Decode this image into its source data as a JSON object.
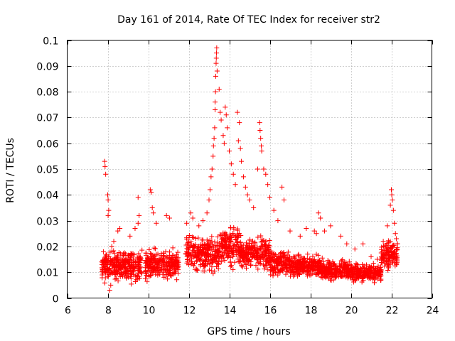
{
  "chart_data": {
    "type": "scatter",
    "title": "Day 161 of 2014, Rate Of TEC Index for receiver str2",
    "xlabel": "GPS time / hours",
    "ylabel": "ROTI / TECUs",
    "xlim": [
      6,
      24
    ],
    "ylim": [
      0,
      0.1
    ],
    "xticks": [
      "6",
      "8",
      "10",
      "12",
      "14",
      "16",
      "18",
      "20",
      "22",
      "24"
    ],
    "yticks": [
      "0",
      "0.01",
      "0.02",
      "0.03",
      "0.04",
      "0.05",
      "0.06",
      "0.07",
      "0.08",
      "0.09",
      "0.1"
    ],
    "grid": true,
    "marker": "+",
    "marker_color": "#ff0000",
    "series": [
      {
        "name": "ROTI",
        "points": [
          [
            7.85,
            0.053
          ],
          [
            7.87,
            0.051
          ],
          [
            7.9,
            0.048
          ],
          [
            8.0,
            0.04
          ],
          [
            8.02,
            0.038
          ],
          [
            8.05,
            0.034
          ],
          [
            8.02,
            0.032
          ],
          [
            8.1,
            0.003
          ],
          [
            8.15,
            0.005
          ],
          [
            8.2,
            0.02
          ],
          [
            8.3,
            0.022
          ],
          [
            8.5,
            0.026
          ],
          [
            8.6,
            0.027
          ],
          [
            9.1,
            0.024
          ],
          [
            9.35,
            0.027
          ],
          [
            9.5,
            0.029
          ],
          [
            9.5,
            0.039
          ],
          [
            9.55,
            0.032
          ],
          [
            10.1,
            0.042
          ],
          [
            10.15,
            0.041
          ],
          [
            10.2,
            0.035
          ],
          [
            10.25,
            0.033
          ],
          [
            10.4,
            0.029
          ],
          [
            10.9,
            0.032
          ],
          [
            11.05,
            0.031
          ],
          [
            11.9,
            0.029
          ],
          [
            12.1,
            0.033
          ],
          [
            12.2,
            0.031
          ],
          [
            12.5,
            0.028
          ],
          [
            12.7,
            0.03
          ],
          [
            12.9,
            0.033
          ],
          [
            13.0,
            0.038
          ],
          [
            13.05,
            0.042
          ],
          [
            13.1,
            0.047
          ],
          [
            13.15,
            0.05
          ],
          [
            13.2,
            0.055
          ],
          [
            13.22,
            0.059
          ],
          [
            13.25,
            0.062
          ],
          [
            13.28,
            0.066
          ],
          [
            13.3,
            0.073
          ],
          [
            13.3,
            0.076
          ],
          [
            13.32,
            0.08
          ],
          [
            13.33,
            0.086
          ],
          [
            13.35,
            0.091
          ],
          [
            13.36,
            0.093
          ],
          [
            13.37,
            0.095
          ],
          [
            13.38,
            0.097
          ],
          [
            13.4,
            0.088
          ],
          [
            13.5,
            0.081
          ],
          [
            13.55,
            0.072
          ],
          [
            13.6,
            0.069
          ],
          [
            13.7,
            0.063
          ],
          [
            13.75,
            0.06
          ],
          [
            13.8,
            0.074
          ],
          [
            13.85,
            0.071
          ],
          [
            13.9,
            0.066
          ],
          [
            14.0,
            0.057
          ],
          [
            14.1,
            0.052
          ],
          [
            14.2,
            0.048
          ],
          [
            14.3,
            0.044
          ],
          [
            14.4,
            0.072
          ],
          [
            14.45,
            0.061
          ],
          [
            14.5,
            0.068
          ],
          [
            14.55,
            0.058
          ],
          [
            14.6,
            0.053
          ],
          [
            14.7,
            0.047
          ],
          [
            14.8,
            0.043
          ],
          [
            14.9,
            0.04
          ],
          [
            15.0,
            0.038
          ],
          [
            15.2,
            0.035
          ],
          [
            15.4,
            0.05
          ],
          [
            15.5,
            0.068
          ],
          [
            15.52,
            0.065
          ],
          [
            15.55,
            0.062
          ],
          [
            15.58,
            0.059
          ],
          [
            15.6,
            0.057
          ],
          [
            15.7,
            0.05
          ],
          [
            15.8,
            0.048
          ],
          [
            15.9,
            0.044
          ],
          [
            16.0,
            0.039
          ],
          [
            16.2,
            0.034
          ],
          [
            16.4,
            0.03
          ],
          [
            16.6,
            0.043
          ],
          [
            16.7,
            0.038
          ],
          [
            17.0,
            0.026
          ],
          [
            17.5,
            0.024
          ],
          [
            17.8,
            0.027
          ],
          [
            18.2,
            0.026
          ],
          [
            18.3,
            0.025
          ],
          [
            18.4,
            0.033
          ],
          [
            18.5,
            0.031
          ],
          [
            18.7,
            0.026
          ],
          [
            19.0,
            0.028
          ],
          [
            19.5,
            0.024
          ],
          [
            19.8,
            0.021
          ],
          [
            20.2,
            0.019
          ],
          [
            20.6,
            0.021
          ],
          [
            21.0,
            0.016
          ],
          [
            21.3,
            0.015
          ],
          [
            21.6,
            0.022
          ],
          [
            21.8,
            0.028
          ],
          [
            21.95,
            0.036
          ],
          [
            22.0,
            0.042
          ],
          [
            22.02,
            0.04
          ],
          [
            22.05,
            0.038
          ],
          [
            22.1,
            0.034
          ],
          [
            22.15,
            0.029
          ],
          [
            22.2,
            0.025
          ],
          [
            22.25,
            0.023
          ],
          [
            22.3,
            0.021
          ]
        ],
        "dense_bands": [
          {
            "x_range": [
              7.7,
              9.7
            ],
            "y_range": [
              0.005,
              0.02
            ]
          },
          {
            "x_range": [
              9.85,
              11.5
            ],
            "y_range": [
              0.005,
              0.021
            ]
          },
          {
            "x_range": [
              11.85,
              13.5
            ],
            "y_range": [
              0.008,
              0.026
            ]
          },
          {
            "x_range": [
              13.5,
              14.5
            ],
            "y_range": [
              0.01,
              0.03
            ]
          },
          {
            "x_range": [
              14.5,
              16.0
            ],
            "y_range": [
              0.01,
              0.025
            ]
          },
          {
            "x_range": [
              16.0,
              17.0
            ],
            "y_range": [
              0.007,
              0.02
            ]
          },
          {
            "x_range": [
              17.0,
              18.5
            ],
            "y_range": [
              0.007,
              0.018
            ]
          },
          {
            "x_range": [
              18.5,
              20.0
            ],
            "y_range": [
              0.006,
              0.016
            ]
          },
          {
            "x_range": [
              20.0,
              21.5
            ],
            "y_range": [
              0.005,
              0.014
            ]
          },
          {
            "x_range": [
              21.5,
              22.3
            ],
            "y_range": [
              0.01,
              0.024
            ]
          }
        ]
      }
    ]
  }
}
